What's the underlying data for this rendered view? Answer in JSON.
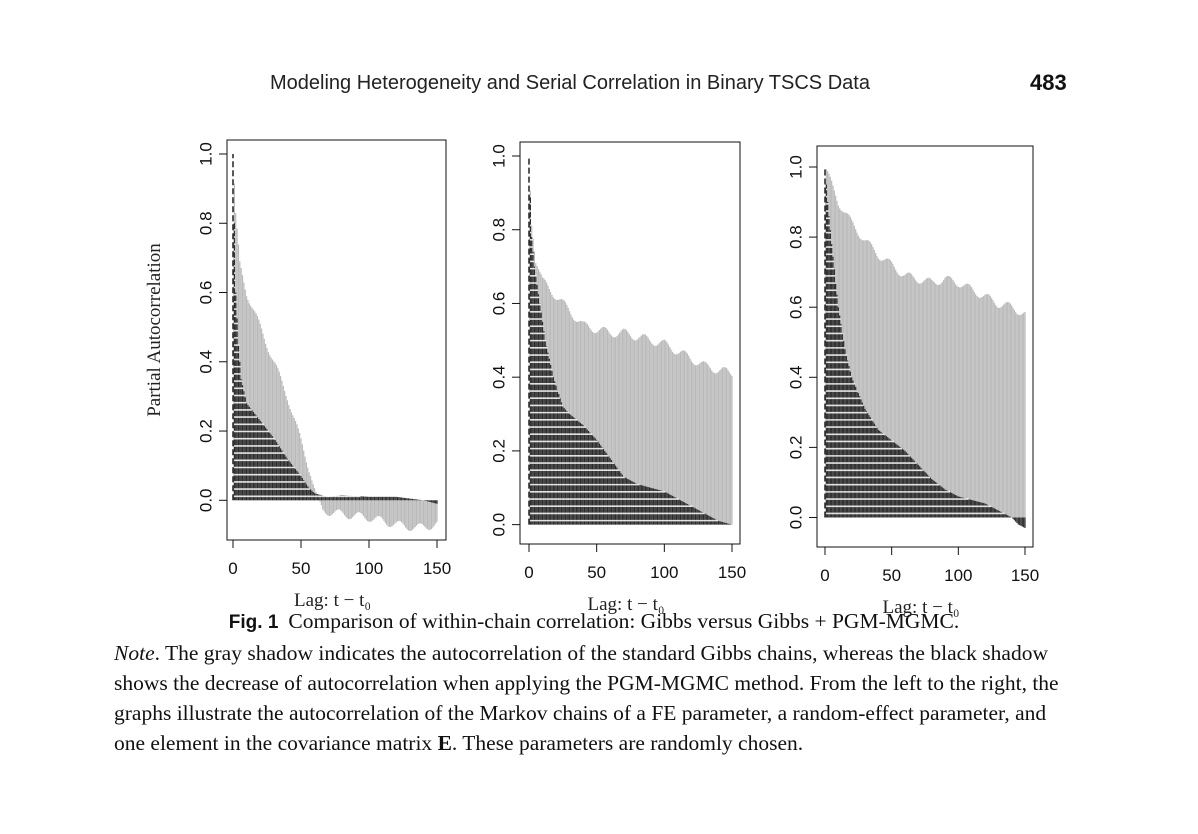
{
  "header": {
    "running_title": "Modeling Heterogeneity and Serial Correlation in Binary TSCS Data",
    "page_number": "483"
  },
  "colors": {
    "gibbs_gray": "#b9b9b9",
    "pgm_black": "#2a2a2a",
    "axis": "#111111"
  },
  "chart_data": [
    {
      "type": "bar",
      "ylabel": "Partial Autocorrelation",
      "xlabel": "Lag: t − t₀",
      "xlim": [
        0,
        150
      ],
      "ylim": [
        -0.08,
        1.0
      ],
      "xticks": [
        "0",
        "50",
        "100",
        "150"
      ],
      "yticks": [
        "0.0",
        "0.2",
        "0.4",
        "0.6",
        "0.8",
        "1.0"
      ],
      "series": [
        {
          "name": "",
          "key": "gibbs",
          "points": [
            [
              0,
              1.0
            ],
            [
              2,
              0.82
            ],
            [
              5,
              0.68
            ],
            [
              10,
              0.6
            ],
            [
              20,
              0.5
            ],
            [
              30,
              0.4
            ],
            [
              40,
              0.3
            ],
            [
              50,
              0.17
            ],
            [
              57,
              0.08
            ],
            [
              62,
              0.0
            ],
            [
              66,
              -0.03
            ],
            [
              80,
              -0.04
            ],
            [
              100,
              -0.05
            ],
            [
              120,
              -0.07
            ],
            [
              135,
              -0.08
            ],
            [
              150,
              -0.07
            ]
          ]
        },
        {
          "name": "",
          "key": "pgm",
          "points": [
            [
              0,
              1.0
            ],
            [
              2,
              0.6
            ],
            [
              4,
              0.45
            ],
            [
              6,
              0.35
            ],
            [
              10,
              0.28
            ],
            [
              20,
              0.23
            ],
            [
              30,
              0.18
            ],
            [
              40,
              0.12
            ],
            [
              50,
              0.07
            ],
            [
              55,
              0.04
            ],
            [
              60,
              0.02
            ],
            [
              70,
              0.01
            ],
            [
              80,
              0.015
            ],
            [
              100,
              0.01
            ],
            [
              120,
              0.01
            ],
            [
              140,
              0.0
            ],
            [
              150,
              -0.01
            ]
          ]
        }
      ]
    },
    {
      "type": "bar",
      "ylabel": "",
      "xlabel": "Lag: t − t₀",
      "xlim": [
        0,
        150
      ],
      "ylim": [
        -0.02,
        1.0
      ],
      "xticks": [
        "0",
        "50",
        "100",
        "150"
      ],
      "yticks": [
        "0.0",
        "0.2",
        "0.4",
        "0.6",
        "0.8",
        "1.0"
      ],
      "series": [
        {
          "name": "",
          "key": "gibbs",
          "points": [
            [
              0,
              1.0
            ],
            [
              2,
              0.82
            ],
            [
              5,
              0.72
            ],
            [
              10,
              0.66
            ],
            [
              20,
              0.62
            ],
            [
              30,
              0.58
            ],
            [
              40,
              0.54
            ],
            [
              50,
              0.53
            ],
            [
              60,
              0.52
            ],
            [
              70,
              0.52
            ],
            [
              80,
              0.51
            ],
            [
              90,
              0.5
            ],
            [
              100,
              0.49
            ],
            [
              110,
              0.47
            ],
            [
              120,
              0.45
            ],
            [
              130,
              0.43
            ],
            [
              140,
              0.42
            ],
            [
              150,
              0.41
            ]
          ]
        },
        {
          "name": "",
          "key": "pgm",
          "points": [
            [
              0,
              1.0
            ],
            [
              2,
              0.78
            ],
            [
              4,
              0.7
            ],
            [
              8,
              0.6
            ],
            [
              12,
              0.5
            ],
            [
              18,
              0.4
            ],
            [
              25,
              0.32
            ],
            [
              30,
              0.3
            ],
            [
              40,
              0.27
            ],
            [
              50,
              0.23
            ],
            [
              60,
              0.18
            ],
            [
              70,
              0.13
            ],
            [
              80,
              0.11
            ],
            [
              90,
              0.1
            ],
            [
              100,
              0.09
            ],
            [
              110,
              0.07
            ],
            [
              120,
              0.05
            ],
            [
              130,
              0.03
            ],
            [
              140,
              0.01
            ],
            [
              150,
              0.0
            ]
          ]
        }
      ]
    },
    {
      "type": "bar",
      "ylabel": "",
      "xlabel": "Lag: t − t₀",
      "xlim": [
        0,
        150
      ],
      "ylim": [
        -0.05,
        1.02
      ],
      "xticks": [
        "0",
        "50",
        "100",
        "150"
      ],
      "yticks": [
        "0.0",
        "0.2",
        "0.4",
        "0.6",
        "0.8",
        "1.0"
      ],
      "series": [
        {
          "name": "",
          "key": "gibbs",
          "points": [
            [
              0,
              1.0
            ],
            [
              5,
              0.95
            ],
            [
              10,
              0.9
            ],
            [
              20,
              0.84
            ],
            [
              30,
              0.79
            ],
            [
              40,
              0.75
            ],
            [
              50,
              0.72
            ],
            [
              60,
              0.69
            ],
            [
              70,
              0.68
            ],
            [
              80,
              0.67
            ],
            [
              90,
              0.68
            ],
            [
              100,
              0.67
            ],
            [
              110,
              0.65
            ],
            [
              120,
              0.63
            ],
            [
              130,
              0.61
            ],
            [
              140,
              0.6
            ],
            [
              150,
              0.58
            ]
          ]
        },
        {
          "name": "",
          "key": "pgm",
          "points": [
            [
              0,
              1.0
            ],
            [
              2,
              0.9
            ],
            [
              5,
              0.78
            ],
            [
              10,
              0.6
            ],
            [
              15,
              0.48
            ],
            [
              20,
              0.4
            ],
            [
              30,
              0.31
            ],
            [
              40,
              0.25
            ],
            [
              50,
              0.22
            ],
            [
              60,
              0.19
            ],
            [
              70,
              0.15
            ],
            [
              80,
              0.11
            ],
            [
              90,
              0.08
            ],
            [
              100,
              0.06
            ],
            [
              110,
              0.05
            ],
            [
              120,
              0.04
            ],
            [
              130,
              0.02
            ],
            [
              140,
              0.0
            ],
            [
              145,
              -0.02
            ],
            [
              150,
              -0.03
            ]
          ]
        }
      ]
    }
  ],
  "caption": {
    "fig_label": "Fig. 1",
    "title": "Comparison of within-chain correlation: Gibbs versus Gibbs + PGM-MGMC.",
    "note_label": "Note",
    "text_before_E": ". The gray shadow indicates the autocorrelation of the standard Gibbs chains, whereas the black shadow shows the decrease of autocorrelation when applying the PGM-MGMC method. From the left to the right, the graphs illustrate the autocorrelation of the Markov chains of a FE parameter, a random-effect parameter, and one element in the covariance matrix ",
    "bold_E": "E",
    "text_after_E": ". These parameters are randomly chosen."
  }
}
